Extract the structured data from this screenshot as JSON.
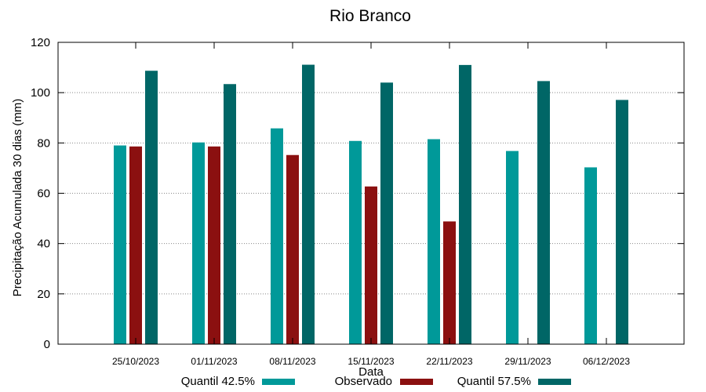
{
  "chart_data": {
    "type": "bar",
    "title": "Rio Branco",
    "xlabel": "Data",
    "ylabel": "Precipitação Acumulada 30 dias (mm)",
    "ylim": [
      0,
      120
    ],
    "yticks": [
      0,
      20,
      40,
      60,
      80,
      100,
      120
    ],
    "grid": true,
    "legend_position": "bottom",
    "categories": [
      "25/10/2023",
      "01/11/2023",
      "08/11/2023",
      "15/11/2023",
      "22/11/2023",
      "29/11/2023",
      "06/12/2023"
    ],
    "series": [
      {
        "name": "Quantil 42.5%",
        "color": "#009999",
        "values": [
          79,
          80.2,
          85.8,
          80.8,
          81.5,
          76.8,
          70.3
        ]
      },
      {
        "name": "Observado",
        "color": "#8b1010",
        "values": [
          78.6,
          78.6,
          75.2,
          62.7,
          48.8,
          null,
          null
        ]
      },
      {
        "name": "Quantil 57.5%",
        "color": "#006666",
        "values": [
          108.7,
          103.4,
          111.1,
          104,
          111,
          104.6,
          97.1
        ]
      }
    ]
  }
}
